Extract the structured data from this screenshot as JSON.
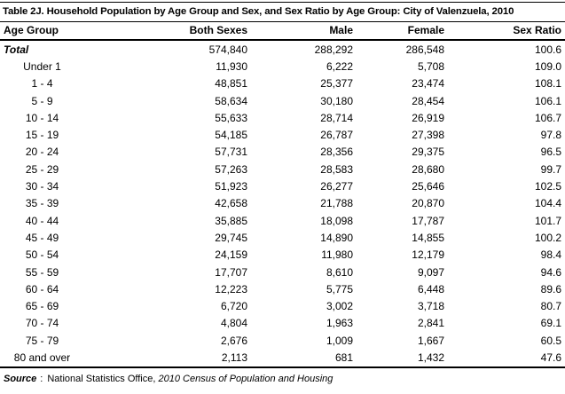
{
  "title": "Table 2J. Household Population by Age Group and Sex, and Sex Ratio by Age Group: City of Valenzuela, 2010",
  "colors": {
    "background": "#ffffff",
    "text": "#000000",
    "rule": "#000000"
  },
  "table": {
    "columns": [
      "Age Group",
      "Both Sexes",
      "Male",
      "Female",
      "Sex Ratio"
    ],
    "rows": [
      {
        "label": "Total",
        "values": [
          "574,840",
          "288,292",
          "286,548",
          "100.6"
        ],
        "emphasis": true
      },
      {
        "label": "Under 1",
        "values": [
          "11,930",
          "6,222",
          "5,708",
          "109.0"
        ],
        "emphasis": false
      },
      {
        "label": "1 - 4",
        "values": [
          "48,851",
          "25,377",
          "23,474",
          "108.1"
        ],
        "emphasis": false
      },
      {
        "label": "5 - 9",
        "values": [
          "58,634",
          "30,180",
          "28,454",
          "106.1"
        ],
        "emphasis": false
      },
      {
        "label": "10 - 14",
        "values": [
          "55,633",
          "28,714",
          "26,919",
          "106.7"
        ],
        "emphasis": false
      },
      {
        "label": "15 - 19",
        "values": [
          "54,185",
          "26,787",
          "27,398",
          "97.8"
        ],
        "emphasis": false
      },
      {
        "label": "20 - 24",
        "values": [
          "57,731",
          "28,356",
          "29,375",
          "96.5"
        ],
        "emphasis": false
      },
      {
        "label": "25 - 29",
        "values": [
          "57,263",
          "28,583",
          "28,680",
          "99.7"
        ],
        "emphasis": false
      },
      {
        "label": "30 - 34",
        "values": [
          "51,923",
          "26,277",
          "25,646",
          "102.5"
        ],
        "emphasis": false
      },
      {
        "label": "35 - 39",
        "values": [
          "42,658",
          "21,788",
          "20,870",
          "104.4"
        ],
        "emphasis": false
      },
      {
        "label": "40 - 44",
        "values": [
          "35,885",
          "18,098",
          "17,787",
          "101.7"
        ],
        "emphasis": false
      },
      {
        "label": "45 - 49",
        "values": [
          "29,745",
          "14,890",
          "14,855",
          "100.2"
        ],
        "emphasis": false
      },
      {
        "label": "50 - 54",
        "values": [
          "24,159",
          "11,980",
          "12,179",
          "98.4"
        ],
        "emphasis": false
      },
      {
        "label": "55 - 59",
        "values": [
          "17,707",
          "8,610",
          "9,097",
          "94.6"
        ],
        "emphasis": false
      },
      {
        "label": "60 - 64",
        "values": [
          "12,223",
          "5,775",
          "6,448",
          "89.6"
        ],
        "emphasis": false
      },
      {
        "label": "65 - 69",
        "values": [
          "6,720",
          "3,002",
          "3,718",
          "80.7"
        ],
        "emphasis": false
      },
      {
        "label": "70 - 74",
        "values": [
          "4,804",
          "1,963",
          "2,841",
          "69.1"
        ],
        "emphasis": false
      },
      {
        "label": "75 - 79",
        "values": [
          "2,676",
          "1,009",
          "1,667",
          "60.5"
        ],
        "emphasis": false
      },
      {
        "label": "80 and over",
        "values": [
          "2,113",
          "681",
          "1,432",
          "47.6"
        ],
        "emphasis": false
      }
    ]
  },
  "chart_data": {
    "type": "table",
    "title": "Table 2J. Household Population by Age Group and Sex, and Sex Ratio by Age Group: City of Valenzuela, 2010",
    "categories": [
      "Total",
      "Under 1",
      "1 - 4",
      "5 - 9",
      "10 - 14",
      "15 - 19",
      "20 - 24",
      "25 - 29",
      "30 - 34",
      "35 - 39",
      "40 - 44",
      "45 - 49",
      "50 - 54",
      "55 - 59",
      "60 - 64",
      "65 - 69",
      "70 - 74",
      "75 - 79",
      "80 and over"
    ],
    "series": [
      {
        "name": "Both Sexes",
        "values": [
          574840,
          11930,
          48851,
          58634,
          55633,
          54185,
          57731,
          57263,
          51923,
          42658,
          35885,
          29745,
          24159,
          17707,
          12223,
          6720,
          4804,
          2676,
          2113
        ]
      },
      {
        "name": "Male",
        "values": [
          288292,
          6222,
          25377,
          30180,
          28714,
          26787,
          28356,
          28583,
          26277,
          21788,
          18098,
          14890,
          11980,
          8610,
          5775,
          3002,
          1963,
          1009,
          681
        ]
      },
      {
        "name": "Female",
        "values": [
          286548,
          5708,
          23474,
          28454,
          26919,
          27398,
          29375,
          28680,
          25646,
          20870,
          17787,
          14855,
          12179,
          9097,
          6448,
          3718,
          2841,
          1667,
          1432
        ]
      },
      {
        "name": "Sex Ratio",
        "values": [
          100.6,
          109.0,
          108.1,
          106.1,
          106.7,
          97.8,
          96.5,
          99.7,
          102.5,
          104.4,
          101.7,
          100.2,
          98.4,
          94.6,
          89.6,
          80.7,
          69.1,
          60.5,
          47.6
        ]
      }
    ]
  },
  "source": {
    "label": "Source",
    "separator": ":",
    "organization": "National Statistics Office,",
    "publication": "2010 Census of Population and Housing"
  }
}
